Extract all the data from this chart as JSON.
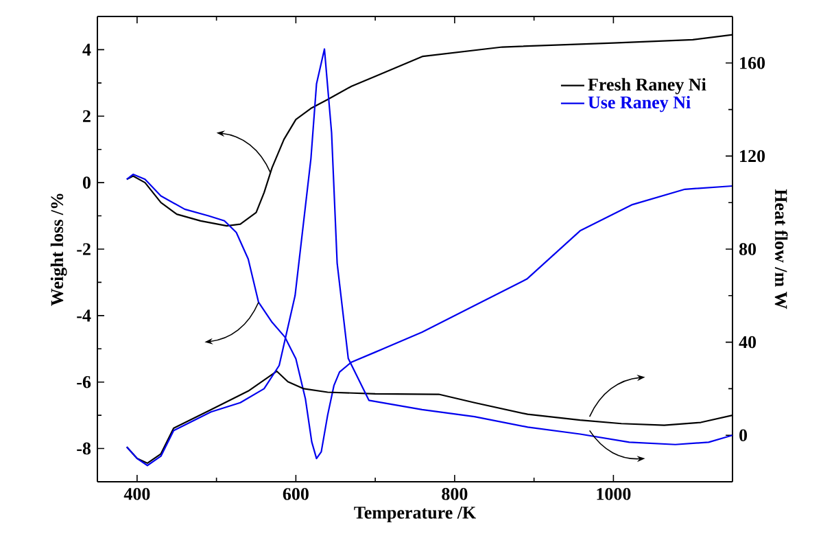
{
  "chart_data": {
    "type": "line",
    "xlabel": "Temperature /K",
    "ylabel": "Weight loss /%",
    "y2label": "Heat flow /m W",
    "xlim": [
      350,
      1150
    ],
    "xticks": [
      400,
      600,
      800,
      1000
    ],
    "ylim": [
      -9,
      5
    ],
    "yticks": [
      -8,
      -6,
      -4,
      -2,
      0,
      2,
      4
    ],
    "y2lim": [
      -20,
      180
    ],
    "y2ticks": [
      0,
      40,
      80,
      120,
      160
    ],
    "legend": "top right",
    "grid": false,
    "marker": "none",
    "line_style": "solid",
    "series": [
      {
        "name": "Fresh Raney Ni",
        "color": "#000000",
        "x": [
          387,
          395,
          410,
          430,
          450,
          480,
          513,
          530,
          550,
          560,
          570,
          585,
          600,
          620,
          640,
          670,
          700,
          760,
          860,
          1000,
          1100,
          1150
        ],
        "values": [
          0.1,
          0.2,
          0.0,
          -0.6,
          -0.95,
          -1.15,
          -1.3,
          -1.25,
          -0.9,
          -0.3,
          0.45,
          1.3,
          1.9,
          2.25,
          2.5,
          2.9,
          3.2,
          3.8,
          4.08,
          4.2,
          4.3,
          4.45
        ]
      },
      {
        "name": "Use Raney Ni",
        "color": "#0000ee",
        "x": [
          387,
          395,
          410,
          430,
          460,
          490,
          510,
          525,
          540,
          553,
          570,
          586,
          600,
          612,
          620,
          626,
          632,
          640,
          648,
          655,
          670,
          700,
          759,
          825,
          891,
          958,
          1024,
          1090,
          1150
        ],
        "values": [
          0.1,
          0.25,
          0.1,
          -0.4,
          -0.8,
          -1.0,
          -1.15,
          -1.5,
          -2.3,
          -3.6,
          -4.2,
          -4.64,
          -5.3,
          -6.5,
          -7.8,
          -8.3,
          -8.1,
          -7.0,
          -6.1,
          -5.7,
          -5.4,
          -5.1,
          -4.5,
          -3.7,
          -2.9,
          -1.45,
          -0.66,
          -0.2,
          -0.1
        ]
      },
      {
        "axis": "y2",
        "color": "#000000",
        "x": [
          387,
          400,
          413,
          430,
          446,
          493,
          540,
          576,
          590,
          610,
          640,
          700,
          780,
          825,
          892,
          958,
          1010,
          1064,
          1110,
          1150
        ],
        "values": [
          -5,
          -10,
          -12,
          -8,
          3,
          11,
          19,
          27.5,
          23,
          20,
          18.5,
          17.8,
          17.6,
          14,
          9,
          6.5,
          5,
          4.3,
          5.5,
          8.6
        ]
      },
      {
        "axis": "y2",
        "color": "#0000ee",
        "x": [
          387,
          400,
          413,
          430,
          446,
          493,
          530,
          560,
          579,
          599,
          619,
          626,
          636,
          645,
          652,
          666,
          692,
          759,
          825,
          892,
          958,
          1020,
          1078,
          1120,
          1150
        ],
        "values": [
          -5,
          -10,
          -13,
          -9,
          2,
          10,
          14,
          20,
          30,
          60,
          119,
          151,
          166,
          130,
          74,
          33,
          15,
          11,
          8,
          3.5,
          0.5,
          -3,
          -4,
          -3,
          0
        ]
      }
    ]
  }
}
